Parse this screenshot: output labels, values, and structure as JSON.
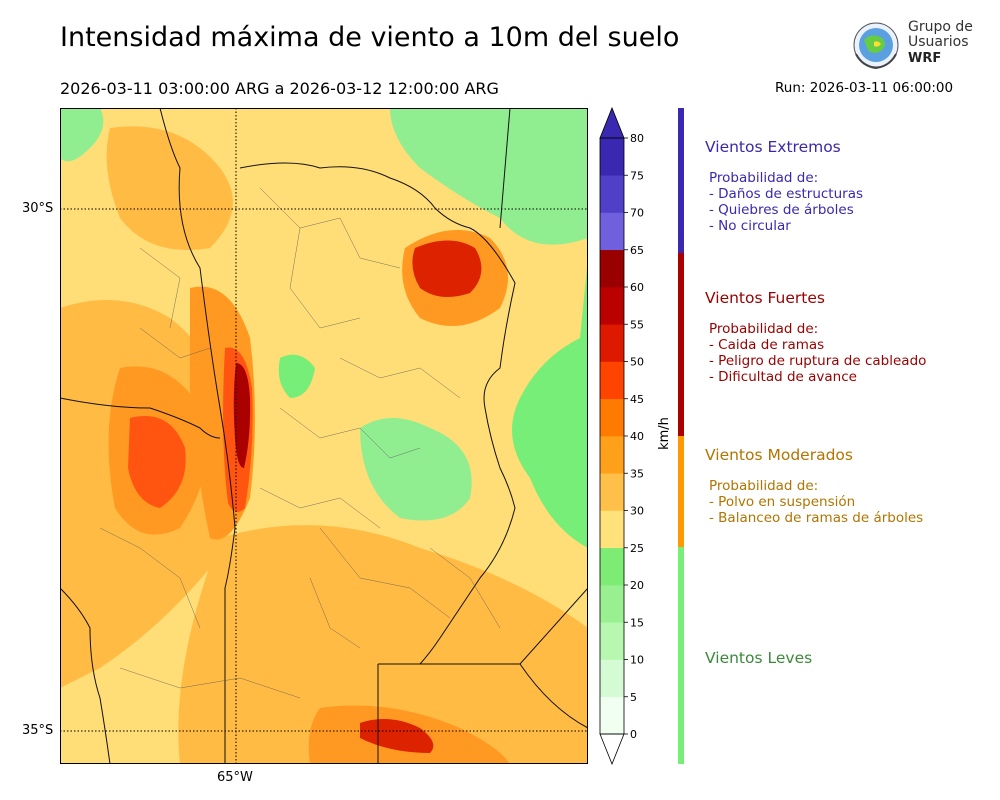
{
  "header": {
    "title": "Intensidad máxima de viento a 10m del suelo",
    "period": "2026-03-11 03:00:00 ARG  a  2026-03-12 12:00:00 ARG",
    "run": "Run: 2026-03-11 06:00:00"
  },
  "logo": {
    "line1": "Grupo de",
    "line2": "Usuarios",
    "line3": "WRF"
  },
  "map": {
    "lat_labels": [
      "30°S",
      "35°S"
    ],
    "lon_labels": [
      "65°W"
    ],
    "fill_colors": {
      "light_green": "#90ee90",
      "green": "#77ee77",
      "yellow": "#ffdd77",
      "light_orange": "#ffbb44",
      "orange": "#ff9922",
      "red_orange": "#ff5511",
      "red": "#dd2200",
      "dark_red": "#aa0000"
    }
  },
  "colorbar": {
    "units": "km/h",
    "ticks": [
      "0",
      "5",
      "10",
      "15",
      "20",
      "25",
      "30",
      "35",
      "40",
      "45",
      "50",
      "55",
      "60",
      "65",
      "70",
      "75",
      "80"
    ],
    "colors": [
      "#f0fff0",
      "#d4fbd4",
      "#b8f7b0",
      "#99f090",
      "#7cec75",
      "#ffe27a",
      "#ffc04a",
      "#ffa01a",
      "#ff7a00",
      "#ff4400",
      "#dd1a00",
      "#bb0000",
      "#990000",
      "#7060dd",
      "#5040c8",
      "#3a28b0"
    ],
    "top_arrow_color": "#3a28b0",
    "bottom_arrow_color": "#ffffff"
  },
  "legend": {
    "categories": [
      {
        "name": "Vientos Extremos",
        "color": "#3a28b0",
        "lines": [
          "Probabilidad de:",
          "- Daños de estructuras",
          "- Quiebres de árboles",
          "- No circular"
        ]
      },
      {
        "name": "Vientos Fuertes",
        "color": "#990000",
        "lines": [
          "Probabilidad de:",
          "- Caida de ramas",
          "- Peligro de ruptura de cableado",
          "- Dificultad de avance"
        ]
      },
      {
        "name": "Vientos Moderados",
        "color": "#b37400",
        "lines": [
          "Probabilidad de:",
          "- Polvo en suspensión",
          "- Balanceo de ramas de árboles"
        ]
      },
      {
        "name": "Vientos Leves",
        "color": "#3a8a3a",
        "lines": []
      }
    ],
    "bar_colors": [
      "#3a28b0",
      "#aa0000",
      "#ff9900",
      "#77ee77"
    ]
  }
}
